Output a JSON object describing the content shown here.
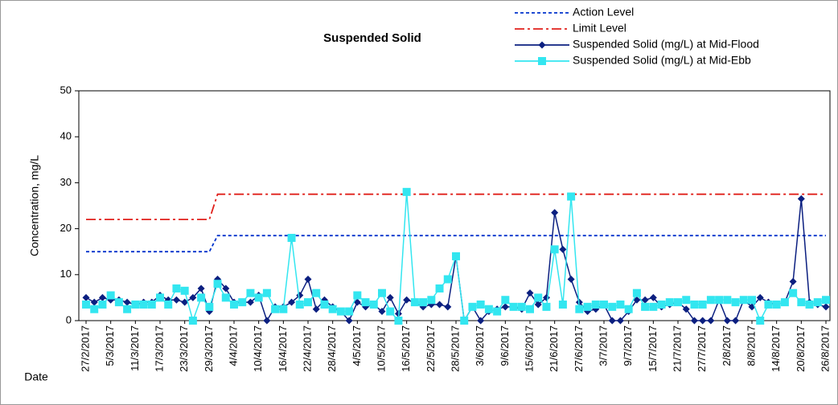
{
  "chart_data": {
    "type": "line",
    "title": "Suspended Solid",
    "x_label": "Date",
    "y_label": "Concentration, mg/L",
    "ylim": [
      0,
      50
    ],
    "yticks": [
      0,
      10,
      20,
      30,
      40,
      50
    ],
    "grid": false,
    "legend": "top-right",
    "categories": [
      "27/2/2017",
      null,
      null,
      "5/3/2017",
      null,
      null,
      "11/3/2017",
      null,
      null,
      "17/3/2017",
      null,
      null,
      "23/3/2017",
      null,
      null,
      "29/3/2017",
      null,
      null,
      "4/4/2017",
      null,
      null,
      "10/4/2017",
      null,
      null,
      "16/4/2017",
      null,
      null,
      "22/4/2017",
      null,
      null,
      "28/4/2017",
      null,
      null,
      "4/5/2017",
      null,
      null,
      "10/5/2017",
      null,
      null,
      "16/5/2017",
      null,
      null,
      "22/5/2017",
      null,
      null,
      "28/5/2017",
      null,
      null,
      "3/6/2017",
      null,
      null,
      "9/6/2017",
      null,
      null,
      "15/6/2017",
      null,
      null,
      "21/6/2017",
      null,
      null,
      "27/6/2017",
      null,
      null,
      "3/7/2017",
      null,
      null,
      "9/7/2017",
      null,
      null,
      "15/7/2017",
      null,
      null,
      "21/7/2017",
      null,
      null,
      "27/7/2017",
      null,
      null,
      "2/8/2017",
      null,
      null,
      "8/8/2017",
      null,
      null,
      "14/8/2017",
      null,
      null,
      "20/8/2017",
      null,
      null,
      "26/8/2017"
    ],
    "series": [
      {
        "name": "Action Level",
        "color": "#0033cc",
        "dash": "dashed",
        "marker": "none",
        "values": [
          15,
          15,
          15,
          15,
          15,
          15,
          15,
          15,
          15,
          15,
          15,
          15,
          15,
          15,
          15,
          15,
          18.5,
          18.5,
          18.5,
          18.5,
          18.5,
          18.5,
          18.5,
          18.5,
          18.5,
          18.5,
          18.5,
          18.5,
          18.5,
          18.5,
          18.5,
          18.5,
          18.5,
          18.5,
          18.5,
          18.5,
          18.5,
          18.5,
          18.5,
          18.5,
          18.5,
          18.5,
          18.5,
          18.5,
          18.5,
          18.5,
          18.5,
          18.5,
          18.5,
          18.5,
          18.5,
          18.5,
          18.5,
          18.5,
          18.5,
          18.5,
          18.5,
          18.5,
          18.5,
          18.5,
          18.5,
          18.5,
          18.5,
          18.5,
          18.5,
          18.5,
          18.5,
          18.5,
          18.5,
          18.5,
          18.5,
          18.5,
          18.5,
          18.5,
          18.5,
          18.5,
          18.5,
          18.5,
          18.5,
          18.5,
          18.5,
          18.5,
          18.5,
          18.5,
          18.5,
          18.5,
          18.5,
          18.5,
          18.5,
          18.5,
          18.5
        ]
      },
      {
        "name": "Limit Level",
        "color": "#e0201b",
        "dash": "dash-dot",
        "marker": "none",
        "values": [
          22,
          22,
          22,
          22,
          22,
          22,
          22,
          22,
          22,
          22,
          22,
          22,
          22,
          22,
          22,
          22,
          27.5,
          27.5,
          27.5,
          27.5,
          27.5,
          27.5,
          27.5,
          27.5,
          27.5,
          27.5,
          27.5,
          27.5,
          27.5,
          27.5,
          27.5,
          27.5,
          27.5,
          27.5,
          27.5,
          27.5,
          27.5,
          27.5,
          27.5,
          27.5,
          27.5,
          27.5,
          27.5,
          27.5,
          27.5,
          27.5,
          27.5,
          27.5,
          27.5,
          27.5,
          27.5,
          27.5,
          27.5,
          27.5,
          27.5,
          27.5,
          27.5,
          27.5,
          27.5,
          27.5,
          27.5,
          27.5,
          27.5,
          27.5,
          27.5,
          27.5,
          27.5,
          27.5,
          27.5,
          27.5,
          27.5,
          27.5,
          27.5,
          27.5,
          27.5,
          27.5,
          27.5,
          27.5,
          27.5,
          27.5,
          27.5,
          27.5,
          27.5,
          27.5,
          27.5,
          27.5,
          27.5,
          27.5,
          27.5,
          27.5,
          27.5
        ]
      },
      {
        "name": "Suspended Solid (mg/L) at Mid-Flood",
        "color": "#0b1f80",
        "dash": "solid",
        "marker": "diamond",
        "values": [
          5,
          4,
          5,
          4.5,
          4.5,
          4,
          3.5,
          4,
          4,
          5.5,
          4.5,
          4.5,
          4,
          5,
          7,
          2,
          9,
          7,
          4,
          4,
          4,
          5.5,
          0,
          3,
          3,
          4,
          5.5,
          9,
          2.5,
          4.5,
          3,
          2,
          0,
          4,
          3,
          3.5,
          2,
          5,
          1.5,
          4.5,
          4,
          3,
          3.5,
          3.5,
          3,
          14,
          0,
          3,
          0,
          2,
          2.5,
          3,
          3,
          2.5,
          6,
          3.5,
          5,
          23.5,
          15.5,
          9,
          4,
          2,
          2.5,
          3.5,
          0,
          0,
          2,
          4.5,
          4.5,
          5,
          3,
          3.5,
          4,
          2.5,
          0,
          0,
          0,
          4.5,
          0,
          0,
          4.5,
          3,
          5,
          4,
          3.5,
          4,
          8.5,
          26.5,
          4,
          3.5,
          3
        ]
      },
      {
        "name": "Suspended Solid (mg/L) at Mid-Ebb",
        "color": "#33e6f0",
        "dash": "solid",
        "marker": "square",
        "values": [
          3.5,
          2.5,
          3.5,
          5.5,
          4,
          2.5,
          3.5,
          3.5,
          3.5,
          5,
          3.5,
          7,
          6.5,
          0,
          5,
          3,
          8,
          5,
          3.5,
          4,
          6,
          5,
          6,
          2.5,
          2.5,
          18,
          3.5,
          4,
          6,
          3.5,
          2.5,
          2,
          2,
          5.5,
          4,
          3.5,
          6,
          2,
          0,
          28,
          4,
          4,
          4.5,
          7,
          9,
          14,
          0,
          3,
          3.5,
          2.5,
          2,
          4.5,
          3,
          3,
          2.5,
          5,
          3,
          15.5,
          3.5,
          27,
          2.5,
          3,
          3.5,
          3.5,
          3,
          3.5,
          2.5,
          6,
          3,
          3,
          3.5,
          4,
          4,
          4.5,
          3.5,
          3.5,
          4.5,
          4.5,
          4.5,
          4,
          4.5,
          4.5,
          0,
          3.5,
          3.5,
          4,
          6,
          4,
          3.5,
          4,
          4.5
        ]
      }
    ]
  }
}
